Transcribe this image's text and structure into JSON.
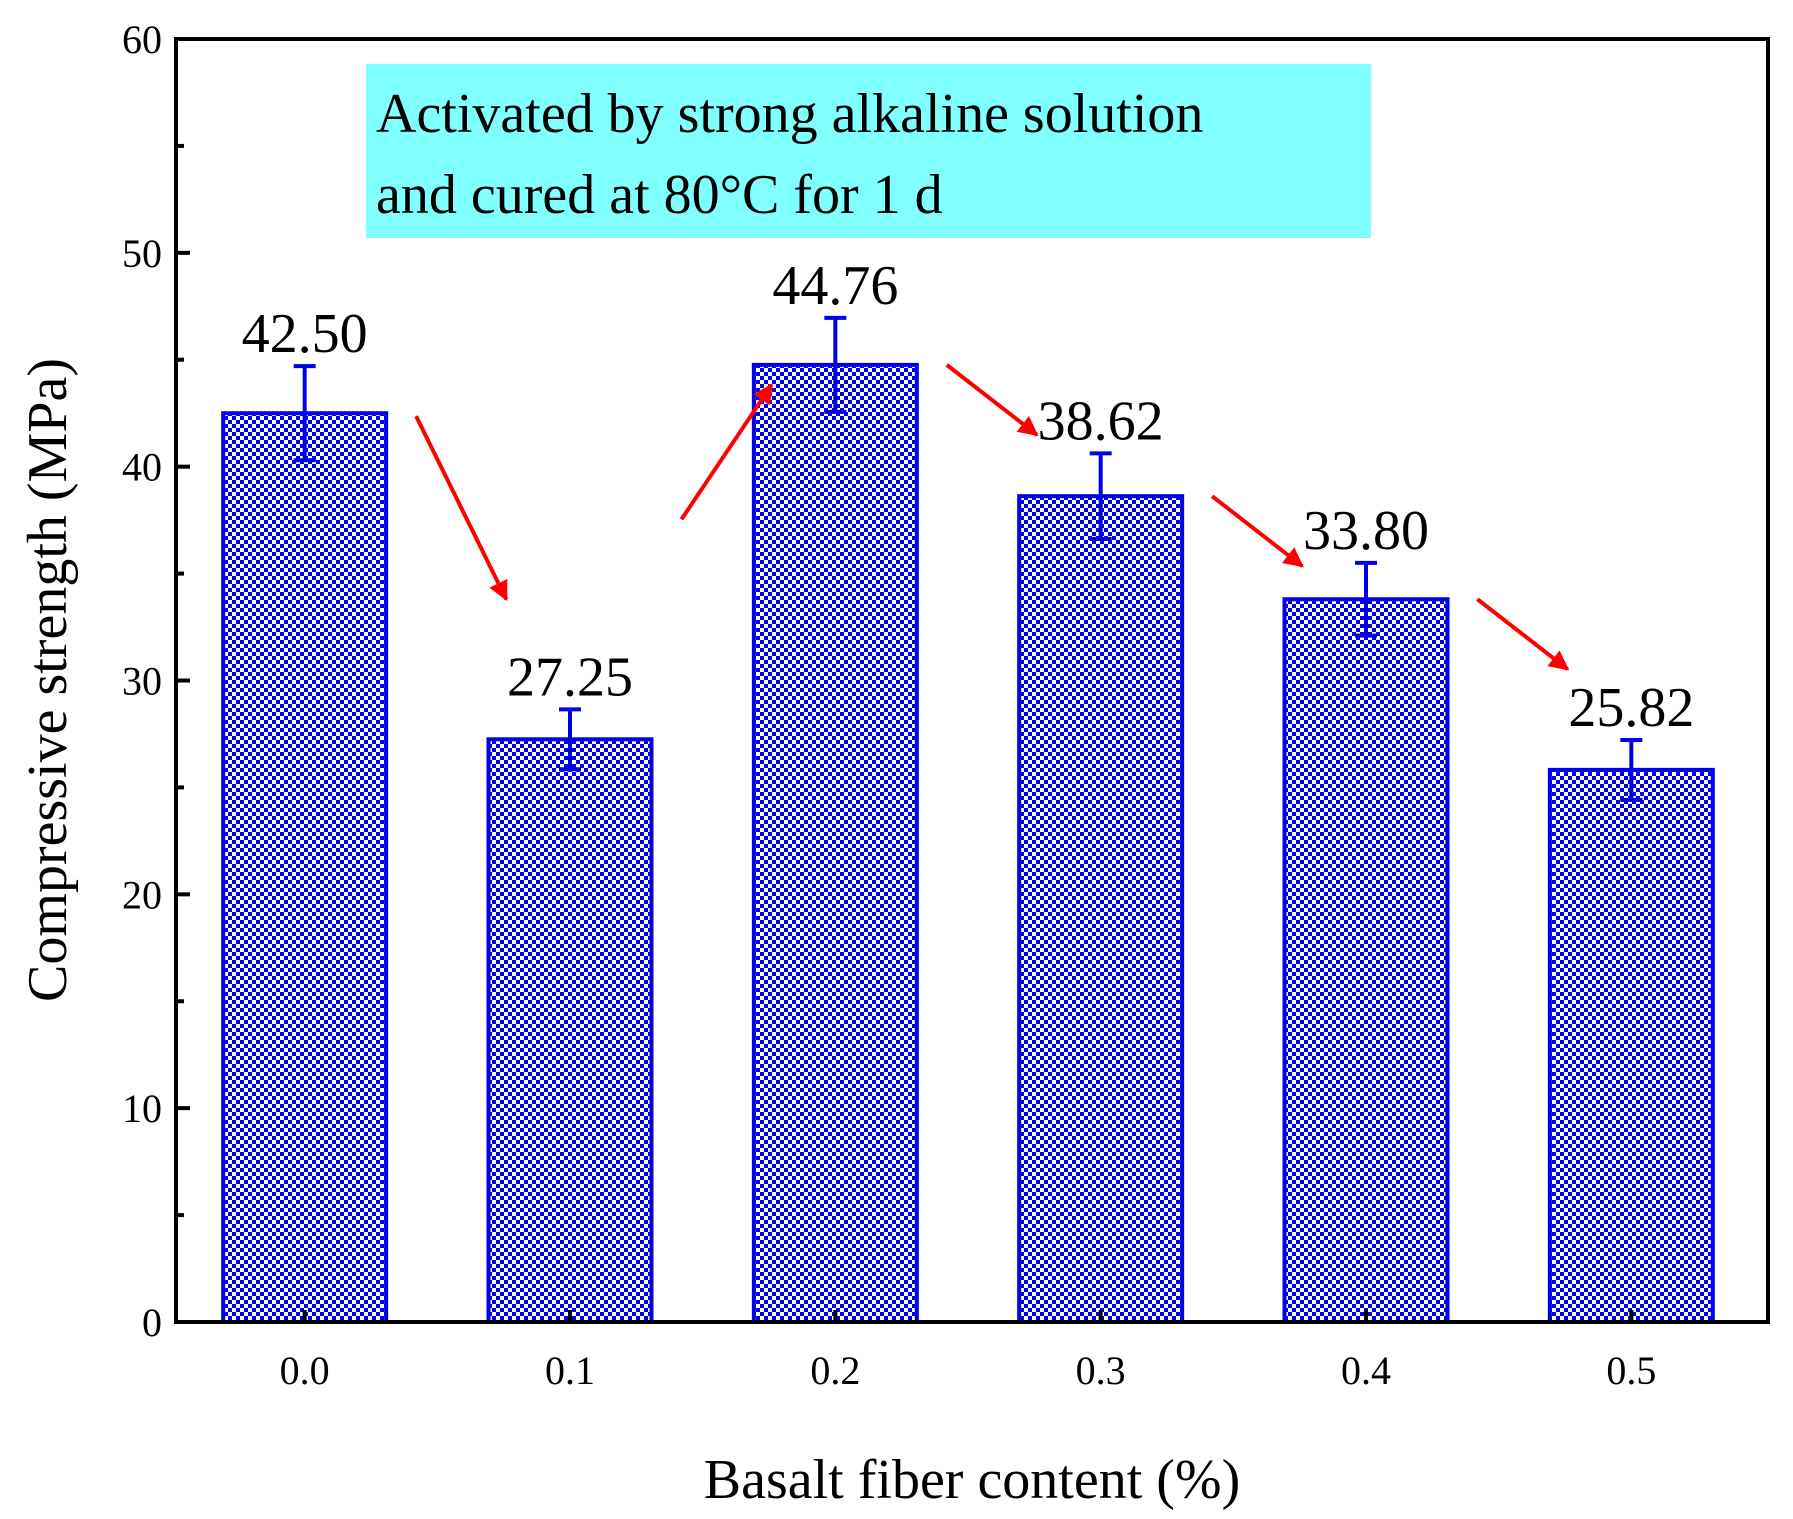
{
  "chart_data": {
    "type": "bar",
    "categories": [
      "0.0",
      "0.1",
      "0.2",
      "0.3",
      "0.4",
      "0.5"
    ],
    "values": [
      42.5,
      27.25,
      44.76,
      38.62,
      33.8,
      25.82
    ],
    "errors": [
      2.2,
      1.4,
      2.2,
      2.0,
      1.7,
      1.4
    ],
    "value_labels": [
      "42.50",
      "27.25",
      "44.76",
      "38.62",
      "33.80",
      "25.82"
    ],
    "xlabel": "Basalt fiber content (%)",
    "ylabel": "Compressive strength (MPa)",
    "ylim": [
      0,
      60
    ],
    "yticks": [
      0,
      10,
      20,
      30,
      40,
      50,
      60
    ],
    "y_minor_step": 5,
    "annotation": {
      "lines": [
        "Activated by strong alkaline solution",
        "and cured at 80°C for 1 d"
      ],
      "background": "#80ffff"
    },
    "trend_arrows": [
      {
        "from": "0.0",
        "to": "0.1",
        "direction": "down"
      },
      {
        "from": "0.1",
        "to": "0.2",
        "direction": "up"
      },
      {
        "from": "0.2",
        "to": "0.3",
        "direction": "down"
      },
      {
        "from": "0.3",
        "to": "0.4",
        "direction": "down"
      },
      {
        "from": "0.4",
        "to": "0.5",
        "direction": "down"
      }
    ],
    "colors": {
      "bar": "#0000ee",
      "error_bar": "#0000ee",
      "arrow": "#ff0000",
      "axis": "#000000"
    }
  }
}
